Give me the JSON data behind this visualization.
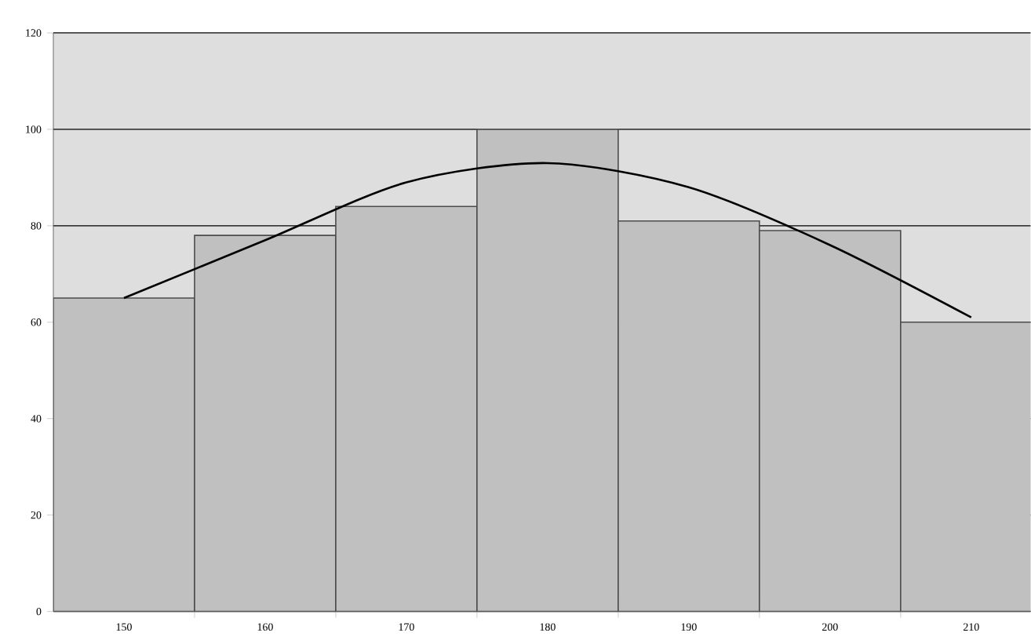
{
  "chart_data": {
    "type": "bar",
    "categories": [
      "150",
      "160",
      "170",
      "180",
      "190",
      "200",
      "210"
    ],
    "series": [
      {
        "color": "#c0c0c0",
        "values": [
          65,
          78,
          84,
          100,
          81,
          79,
          60
        ]
      },
      {
        "type": "line",
        "color": "#000000",
        "values": [
          65,
          77,
          89,
          93,
          88,
          76,
          61
        ]
      }
    ],
    "ylim": [
      0,
      120
    ],
    "yticks": [
      0,
      20,
      40,
      60,
      80,
      100,
      120
    ],
    "grid": "y",
    "marker": "none",
    "line_style": "solid"
  }
}
